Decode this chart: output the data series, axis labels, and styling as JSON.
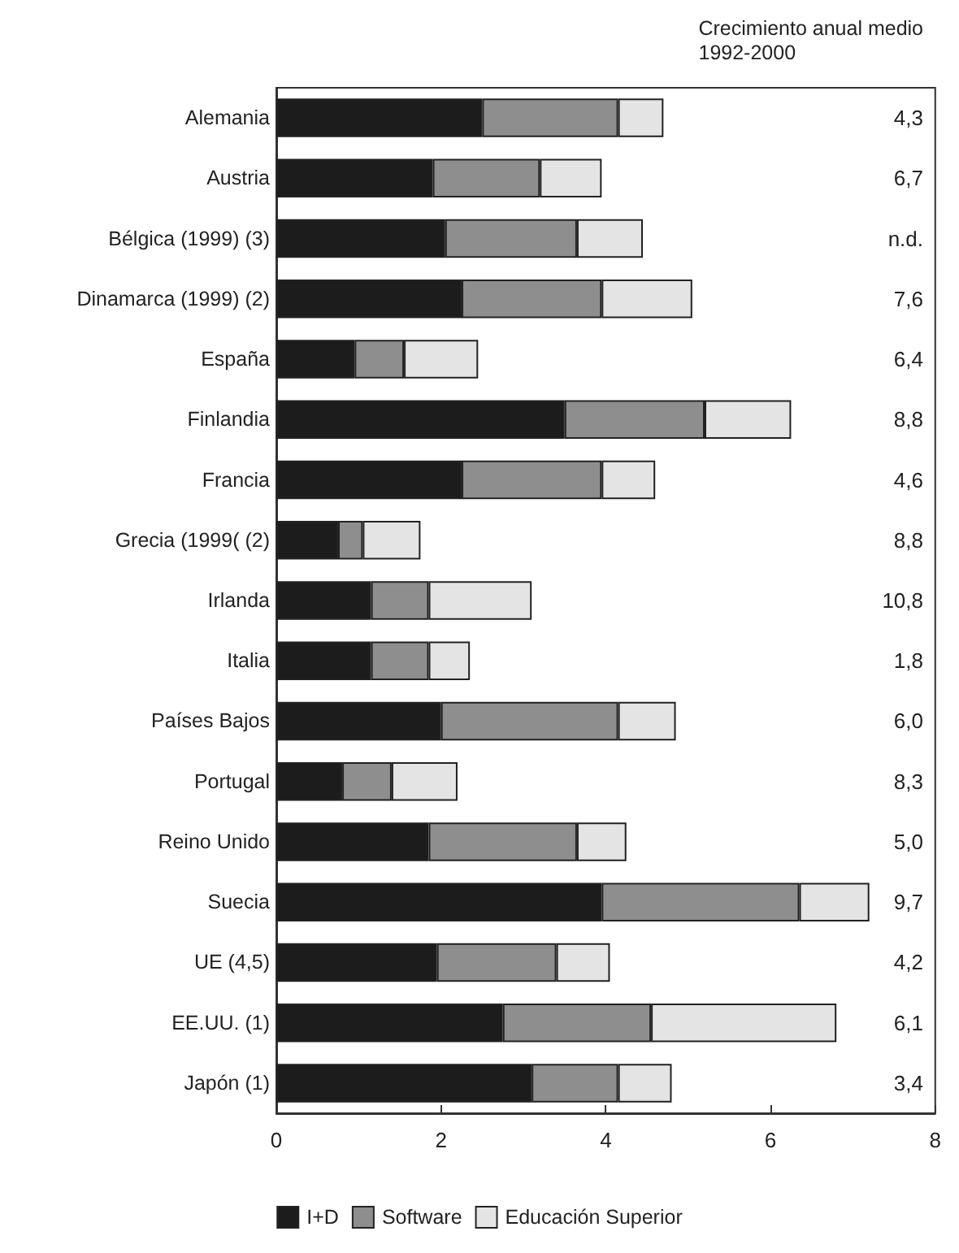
{
  "chart_data": {
    "type": "bar",
    "orientation": "horizontal",
    "stacked": true,
    "categories": [
      "Alemania",
      "Austria",
      "Bélgica (1999) (3)",
      "Dinamarca (1999) (2)",
      "España",
      "Finlandia",
      "Francia",
      "Grecia (1999( (2)",
      "Irlanda",
      "Italia",
      "Países Bajos",
      "Portugal",
      "Reino Unido",
      "Suecia",
      "UE (4,5)",
      "EE.UU. (1)",
      "Japón (1)"
    ],
    "series": [
      {
        "name": "I+D",
        "color": "#1c1c1c",
        "values": [
          2.5,
          1.9,
          2.05,
          2.25,
          0.95,
          3.5,
          2.25,
          0.75,
          1.15,
          1.15,
          2.0,
          0.8,
          1.85,
          3.95,
          1.95,
          2.75,
          3.1
        ]
      },
      {
        "name": "Software",
        "color": "#8e8e8e",
        "values": [
          1.65,
          1.3,
          1.6,
          1.7,
          0.6,
          1.7,
          1.7,
          0.3,
          0.7,
          0.7,
          2.15,
          0.6,
          1.8,
          2.4,
          1.45,
          1.8,
          1.05
        ]
      },
      {
        "name": "Educación Superior",
        "color": "#e4e4e4",
        "values": [
          0.55,
          0.75,
          0.8,
          1.1,
          0.9,
          1.05,
          0.65,
          0.7,
          1.25,
          0.5,
          0.7,
          0.8,
          0.6,
          0.85,
          0.65,
          2.25,
          0.65
        ]
      }
    ],
    "xlim": [
      0,
      8
    ],
    "xticks": [
      0,
      2,
      4,
      6,
      8
    ],
    "grid": false,
    "legend": "bottom",
    "annotations": [
      "Crecimiento anual medio\n1992-2000",
      "4,3",
      "6,7",
      "n.d.",
      "7,6",
      "6,4",
      "8,8",
      "4,6",
      "8,8",
      "10,8",
      "1,8",
      "6,0",
      "8,3",
      "5,0",
      "9,7",
      "4,2",
      "6,1",
      "3,4"
    ]
  }
}
